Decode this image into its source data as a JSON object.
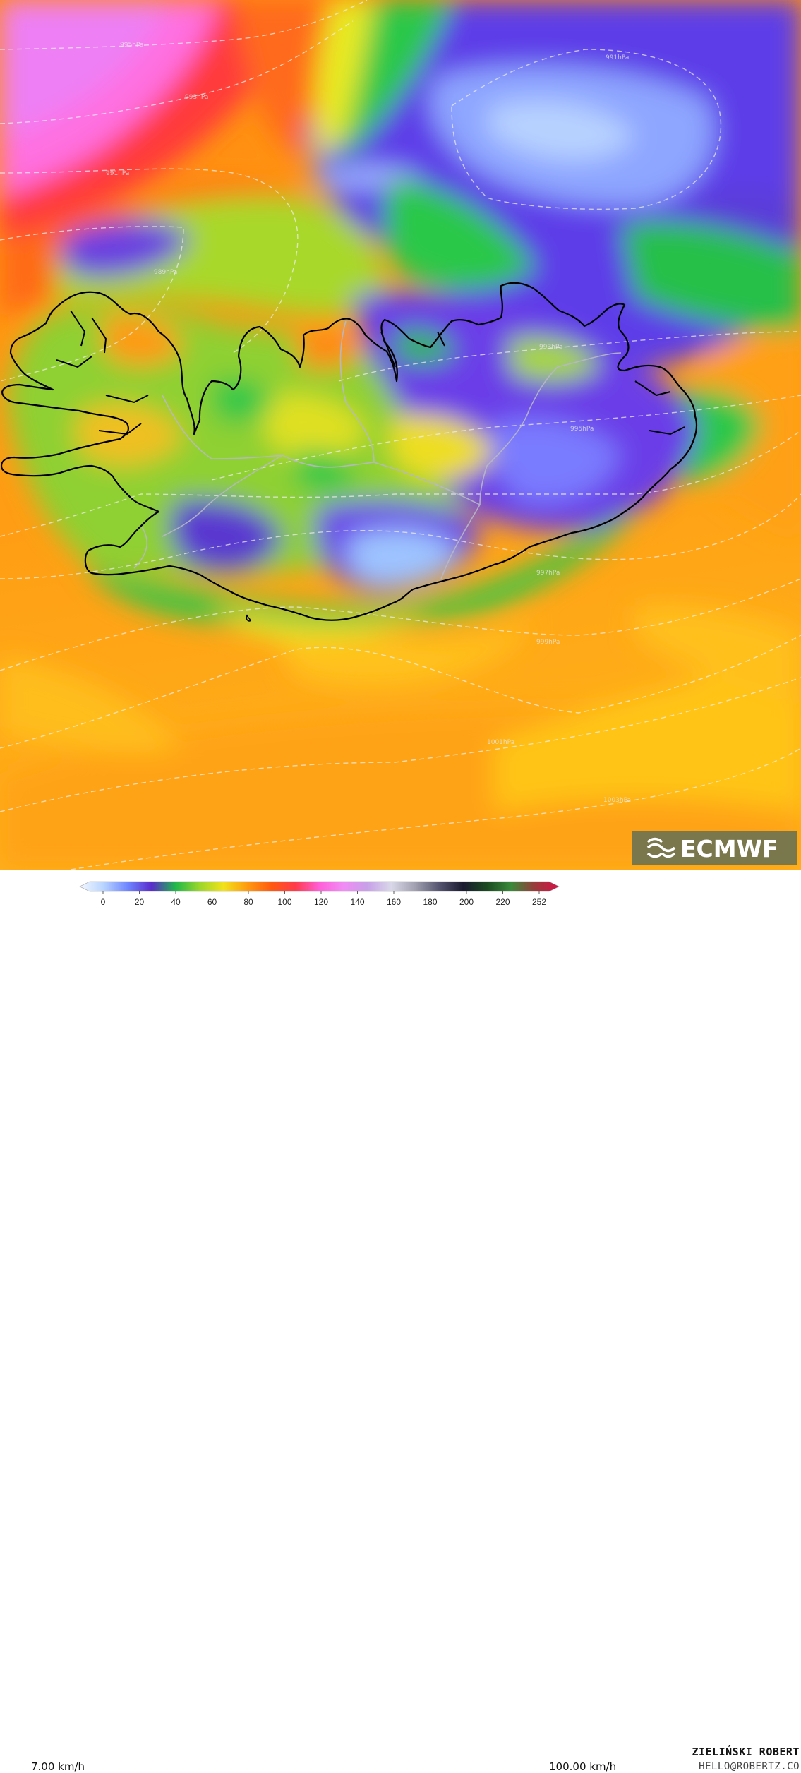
{
  "legend": {
    "min_label": "7.00 km/h",
    "max_label": "100.00 km/h",
    "ticks": [
      "0",
      "20",
      "40",
      "60",
      "80",
      "100",
      "120",
      "140",
      "160",
      "180",
      "200",
      "220",
      "252"
    ],
    "colors": [
      "#f4f8ff",
      "#b8d4ff",
      "#6f86ff",
      "#5a2ccc",
      "#1fb84a",
      "#9bd62c",
      "#f2e21a",
      "#ff9a10",
      "#ff5a10",
      "#ff3a4a",
      "#ff5fd8",
      "#f18cf5",
      "#c7a0e8",
      "#d8d8e8",
      "#a0a0b0",
      "#555570",
      "#1a1a30",
      "#1a4a20",
      "#3a8a3a",
      "#9a3a3a",
      "#d81048"
    ]
  },
  "isobars": [
    "995hPa",
    "993hPa",
    "991hPa",
    "989hPa",
    "991hPa",
    "993hPa",
    "995hPa",
    "997hPa",
    "999hPa",
    "1001hPa",
    "1003hPa"
  ],
  "credits": {
    "name": "ZIELIŃSKI ROBERT",
    "email": "HELLO@ROBERTZ.CO"
  },
  "logo": {
    "text": "ECMWF",
    "icon": "ecmwf-logo-icon"
  }
}
